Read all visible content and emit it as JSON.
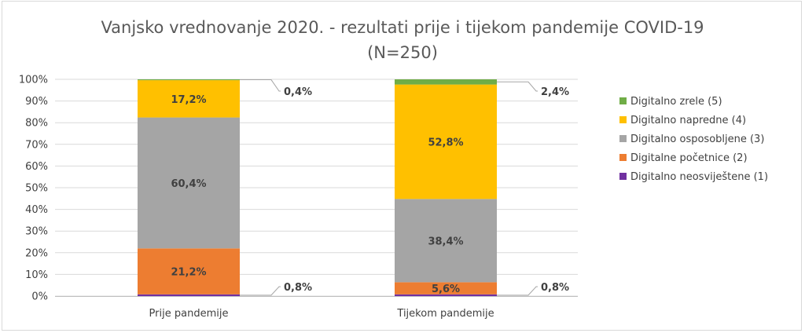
{
  "chart_data": {
    "type": "bar",
    "stacked": true,
    "title": "Vanjsko vrednovanje 2020. - rezultati prije i tijekom pandemije COVID-19",
    "subtitle": "(N=250)",
    "categories": [
      "Prije pandemije",
      "Tijekom pandemije"
    ],
    "ylim": [
      0,
      100
    ],
    "y_ticks": [
      "0%",
      "10%",
      "20%",
      "30%",
      "40%",
      "50%",
      "60%",
      "70%",
      "80%",
      "90%",
      "100%"
    ],
    "grid": true,
    "legend_position": "right",
    "series": [
      {
        "name": "Digitalno neosviještene (1)",
        "color": "#7030a0",
        "values": [
          0.8,
          0.8
        ],
        "labels": [
          "0,8%",
          "0,8%"
        ],
        "label_style": "callout"
      },
      {
        "name": "Digitalne početnice (2)",
        "color": "#ed7d31",
        "values": [
          21.2,
          5.6
        ],
        "labels": [
          "21,2%",
          "5,6%"
        ],
        "label_style": "inside"
      },
      {
        "name": "Digitalno osposobljene (3)",
        "color": "#a5a5a5",
        "values": [
          60.4,
          38.4
        ],
        "labels": [
          "60,4%",
          "38,4%"
        ],
        "label_style": "inside"
      },
      {
        "name": "Digitalno napredne (4)",
        "color": "#ffc000",
        "values": [
          17.2,
          52.8
        ],
        "labels": [
          "17,2%",
          "52,8%"
        ],
        "label_style": "inside"
      },
      {
        "name": "Digitalno zrele (5)",
        "color": "#70ad47",
        "values": [
          0.4,
          2.4
        ],
        "labels": [
          "0,4%",
          "2,4%"
        ],
        "label_style": "callout"
      }
    ],
    "legend_order": [
      4,
      3,
      2,
      1,
      0
    ]
  }
}
